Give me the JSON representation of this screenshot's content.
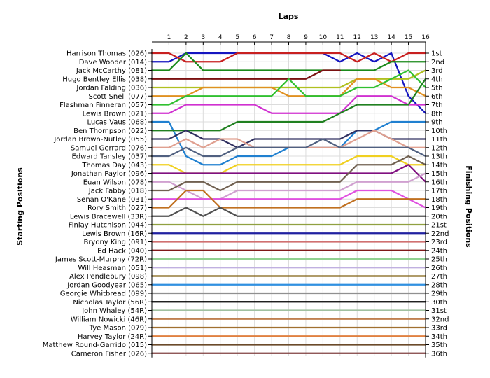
{
  "chart_data": {
    "type": "line",
    "title": "Laps",
    "ylabel_left": "Starting Positions",
    "ylabel_right": "Finishing Positions",
    "laps": [
      1,
      2,
      3,
      4,
      5,
      6,
      7,
      8,
      9,
      10,
      11,
      12,
      13,
      14,
      15,
      16
    ],
    "drivers": [
      "Harrison Thomas (026)",
      "Dave Wooder (014)",
      "Jack McCarthy (081)",
      "Hugo Bentley Ellis (038)",
      "Jordan Falding (036)",
      "Scott Snell (077)",
      "Flashman Finneran (057)",
      "Lewis Brown (021)",
      "Lucas Vaus (068)",
      "Ben Thompson (022)",
      "Jordan Brown-Nutley (055)",
      "Samuel Gerrard (076)",
      "Edward Tansley (037)",
      "Thomas Day (043)",
      "Jonathan Paylor (096)",
      "Euan Wilson (078)",
      "Jack Fabby (018)",
      "Senan O'Kane (031)",
      "Rory Smith (027)",
      "Lewis Bracewell (33R)",
      "Finlay Hutchison (044)",
      "Lewis Brown (16R)",
      "Bryony King (091)",
      "Ed Hack (040)",
      "James Scott-Murphy (72R)",
      "Will Heasman (051)",
      "Alex Pendlebury (098)",
      "Jordan Goodyear (065)",
      "Georgie Whitbread (099)",
      "Nicholas Taylor (56R)",
      "John Whaley (54R)",
      "William Nowicki (46R)",
      "Tye Mason (079)",
      "Harvey Taylor (24R)",
      "Matthew Round-Garrido (015)",
      "Cameron Fisher (026)"
    ],
    "finishing_labels": [
      "1st",
      "2nd",
      "3rd",
      "4th",
      "5th",
      "6th",
      "7th",
      "8th",
      "9th",
      "10th",
      "11th",
      "12th",
      "13th",
      "14th",
      "15th",
      "16th",
      "17th",
      "18th",
      "19th",
      "20th",
      "21st",
      "22nd",
      "23rd",
      "24th",
      "25th",
      "26th",
      "27th",
      "28th",
      "29th",
      "30th",
      "31st",
      "32nd",
      "33rd",
      "34th",
      "35th",
      "36th"
    ],
    "series": [
      {
        "color": "#1515c0",
        "positions": [
          2,
          1,
          1,
          1,
          1,
          1,
          1,
          1,
          1,
          1,
          2,
          1,
          2,
          1,
          6,
          8
        ]
      },
      {
        "color": "#c82020",
        "positions": [
          1,
          2,
          2,
          2,
          1,
          1,
          1,
          1,
          1,
          1,
          1,
          2,
          1,
          2,
          1,
          1
        ]
      },
      {
        "color": "#1a8a1a",
        "positions": [
          3,
          1,
          3,
          3,
          3,
          3,
          3,
          3,
          3,
          3,
          3,
          3,
          3,
          2,
          2,
          2
        ]
      },
      {
        "color": "#7a1010",
        "positions": [
          4,
          4,
          4,
          4,
          4,
          4,
          4,
          4,
          4,
          3,
          3
        ]
      },
      {
        "color": "#b0c020",
        "positions": [
          5,
          5,
          5,
          5,
          5,
          5,
          5,
          5,
          5,
          5,
          5,
          4,
          4,
          4,
          4,
          3
        ]
      },
      {
        "color": "#e09020",
        "positions": [
          6,
          6,
          5,
          5,
          5,
          5,
          5,
          6,
          6,
          6,
          6,
          4,
          4,
          5,
          5,
          6
        ]
      },
      {
        "color": "#30c030",
        "positions": [
          7,
          6,
          6,
          6,
          6,
          6,
          6,
          4,
          6,
          6,
          6,
          5,
          5,
          4,
          3,
          5
        ]
      },
      {
        "color": "#d030d0",
        "positions": [
          8,
          7,
          7,
          7,
          7,
          7,
          8,
          8,
          8,
          8,
          8,
          6,
          6,
          6,
          7,
          7
        ]
      },
      {
        "color": "#2080d0",
        "positions": [
          9,
          13,
          14,
          14,
          13,
          13,
          13,
          12,
          12,
          12,
          12,
          10,
          10,
          9,
          9,
          9
        ]
      },
      {
        "color": "#208020",
        "positions": [
          10,
          10,
          10,
          10,
          9,
          9,
          9,
          9,
          9,
          9,
          8,
          7,
          7,
          7,
          7,
          4
        ]
      },
      {
        "color": "#303060",
        "positions": [
          11,
          10,
          11,
          11,
          12,
          11,
          11,
          11,
          11,
          11,
          11,
          10,
          10,
          11,
          11,
          11
        ]
      },
      {
        "color": "#e0a090",
        "positions": [
          12,
          11,
          12,
          11,
          11,
          12,
          12,
          12,
          12,
          12,
          12,
          11,
          10,
          11,
          12,
          12
        ]
      },
      {
        "color": "#506080",
        "positions": [
          13,
          12,
          13,
          13,
          12,
          12,
          12,
          12,
          12,
          11,
          12,
          12,
          12,
          12,
          12,
          13
        ]
      },
      {
        "color": "#f0d020",
        "positions": [
          14,
          15,
          15,
          15,
          14,
          14,
          14,
          14,
          14,
          14,
          14,
          13,
          13,
          13,
          14,
          14
        ]
      },
      {
        "color": "#801080",
        "positions": [
          15,
          15,
          15,
          15,
          15,
          15,
          15,
          15,
          15,
          15,
          15,
          15,
          15,
          15,
          14,
          16
        ]
      },
      {
        "color": "#d0a0d0",
        "positions": [
          16,
          17,
          18,
          18,
          17,
          17,
          17,
          17,
          17,
          17,
          17,
          16,
          16,
          16,
          16,
          15
        ]
      },
      {
        "color": "#706050",
        "positions": [
          17,
          16,
          16,
          17,
          16,
          16,
          16,
          16,
          16,
          16,
          16,
          14,
          14,
          14,
          13,
          14
        ]
      },
      {
        "color": "#e050e0",
        "positions": [
          18,
          18,
          18,
          18,
          18,
          18,
          18,
          18,
          18,
          18,
          18,
          17,
          17,
          17,
          18,
          19
        ]
      },
      {
        "color": "#c07020",
        "positions": [
          19,
          17,
          17,
          19,
          19,
          19,
          19,
          19,
          19,
          19,
          19,
          18,
          18,
          18,
          18,
          18
        ]
      },
      {
        "color": "#505050",
        "positions": [
          20,
          19,
          20,
          19,
          20,
          20,
          20,
          20,
          20,
          20,
          20,
          20,
          20,
          20,
          20,
          20
        ]
      },
      {
        "color": "#90a040",
        "positions": [
          21,
          21,
          21,
          21,
          21,
          21,
          21,
          21,
          21,
          21,
          21,
          21,
          21,
          21,
          21,
          21
        ]
      },
      {
        "color": "#2020a0",
        "positions": [
          22,
          22,
          22,
          22,
          22,
          22,
          22,
          22,
          22,
          22,
          22,
          22,
          22,
          22,
          22,
          22
        ]
      },
      {
        "color": "#d07070",
        "positions": [
          23,
          23,
          23,
          23,
          23,
          23,
          23,
          23,
          23,
          23,
          23,
          23,
          23,
          23,
          23,
          23
        ]
      },
      {
        "color": "#801818",
        "positions": [
          24,
          24,
          24,
          24,
          24,
          24,
          24,
          24,
          24,
          24,
          24,
          24,
          24,
          24,
          24,
          24
        ]
      },
      {
        "color": "#90d090",
        "positions": [
          25,
          25,
          25,
          25,
          25,
          25,
          25,
          25,
          25,
          25,
          25,
          25,
          25,
          25,
          25,
          25
        ]
      },
      {
        "color": "#c0b0e0",
        "positions": [
          26,
          26,
          26,
          26,
          26,
          26,
          26,
          26,
          26,
          26,
          26,
          26,
          26,
          26,
          26,
          26
        ]
      },
      {
        "color": "#806010",
        "positions": [
          27,
          27,
          27,
          27,
          27,
          27,
          27,
          27,
          27,
          27,
          27,
          27,
          27,
          27,
          27,
          27
        ]
      },
      {
        "color": "#3090e0",
        "positions": [
          28,
          28,
          28,
          28,
          28,
          28,
          28,
          28,
          28,
          28,
          28,
          28,
          28,
          28,
          28,
          28
        ]
      },
      {
        "color": "#909090",
        "positions": [
          29,
          29,
          29,
          29,
          29,
          29,
          29,
          29,
          29,
          29,
          29,
          29,
          29,
          29,
          29,
          29
        ]
      },
      {
        "color": "#000000",
        "positions": [
          30,
          30,
          30,
          30,
          30,
          30,
          30,
          30,
          30,
          30,
          30,
          30,
          30,
          30,
          30,
          30
        ]
      },
      {
        "color": "#a0c0a0",
        "positions": [
          31,
          31,
          31,
          31,
          31,
          31,
          31,
          31,
          31,
          31,
          31,
          31,
          31,
          31,
          31,
          31
        ]
      },
      {
        "color": "#c08050",
        "positions": [
          32,
          32,
          32,
          32,
          32,
          32,
          32,
          32,
          32,
          32,
          32,
          32,
          32,
          32,
          32,
          32
        ]
      },
      {
        "color": "#a07030",
        "positions": [
          33,
          33,
          33,
          33,
          33,
          33,
          33,
          33,
          33,
          33,
          33,
          33,
          33,
          33,
          33,
          33
        ]
      },
      {
        "color": "#e08040",
        "positions": [
          34,
          34,
          34,
          34,
          34,
          34,
          34,
          34,
          34,
          34,
          34,
          34,
          34,
          34,
          34,
          34
        ]
      },
      {
        "color": "#6b4a2a",
        "positions": [
          35,
          35,
          35,
          35,
          35,
          35,
          35,
          35,
          35,
          35,
          35,
          35,
          35,
          35,
          35,
          35
        ]
      },
      {
        "color": "#804040",
        "positions": [
          36,
          36,
          36,
          36,
          36,
          36,
          36,
          36,
          36,
          36,
          36,
          36,
          36,
          36,
          36,
          36
        ]
      }
    ]
  }
}
